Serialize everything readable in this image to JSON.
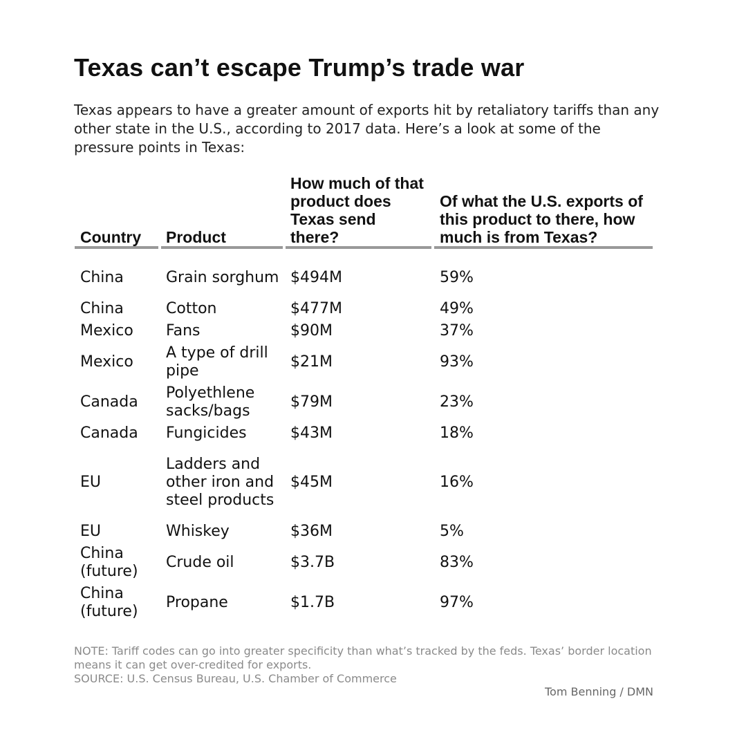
{
  "title": "Texas can’t escape Trump’s trade war",
  "intro": "Texas appears to have a greater amount of exports hit by retaliatory tariffs than any other state in the U.S., according to 2017 data. Here’s a look at some of the pressure points in Texas:",
  "table": {
    "headers": {
      "country": "Country",
      "product": "Product",
      "amount": "How much of that product does Texas send there?",
      "share": "Of what the U.S. exports of this product to there, how much is from Texas?"
    },
    "rows": [
      {
        "country": "China",
        "product": "Grain sorghum",
        "amount": "$494M",
        "share": "59%"
      },
      {
        "country": "China",
        "product": "Cotton",
        "amount": "$477M",
        "share": "49%"
      },
      {
        "country": "Mexico",
        "product": "Fans",
        "amount": "$90M",
        "share": "37%"
      },
      {
        "country": "Mexico",
        "product": "A type of drill pipe",
        "amount": "$21M",
        "share": "93%"
      },
      {
        "country": "Canada",
        "product": "Polyethlene sacks/bags",
        "amount": "$79M",
        "share": "23%"
      },
      {
        "country": "Canada",
        "product": "Fungicides",
        "amount": "$43M",
        "share": "18%"
      },
      {
        "country": "EU",
        "product": "Ladders and other iron and steel products",
        "amount": "$45M",
        "share": "16%"
      },
      {
        "country": "EU",
        "product": "Whiskey",
        "amount": "$36M",
        "share": "5%"
      },
      {
        "country": "China (future)",
        "product": "Crude oil",
        "amount": "$3.7B",
        "share": "83%"
      },
      {
        "country": "China (future)",
        "product": "Propane",
        "amount": "$1.7B",
        "share": "97%"
      }
    ]
  },
  "note": "NOTE: Tariff codes can go into greater specificity than what’s tracked by the feds. Texas’ border location means it can get over-credited for exports.",
  "source": "SOURCE: U.S. Census Bureau, U.S. Chamber of Commerce",
  "credit": "Tom Benning / DMN",
  "colors": {
    "text": "#111111",
    "rule": "#999999",
    "note": "#8a8a8a"
  }
}
